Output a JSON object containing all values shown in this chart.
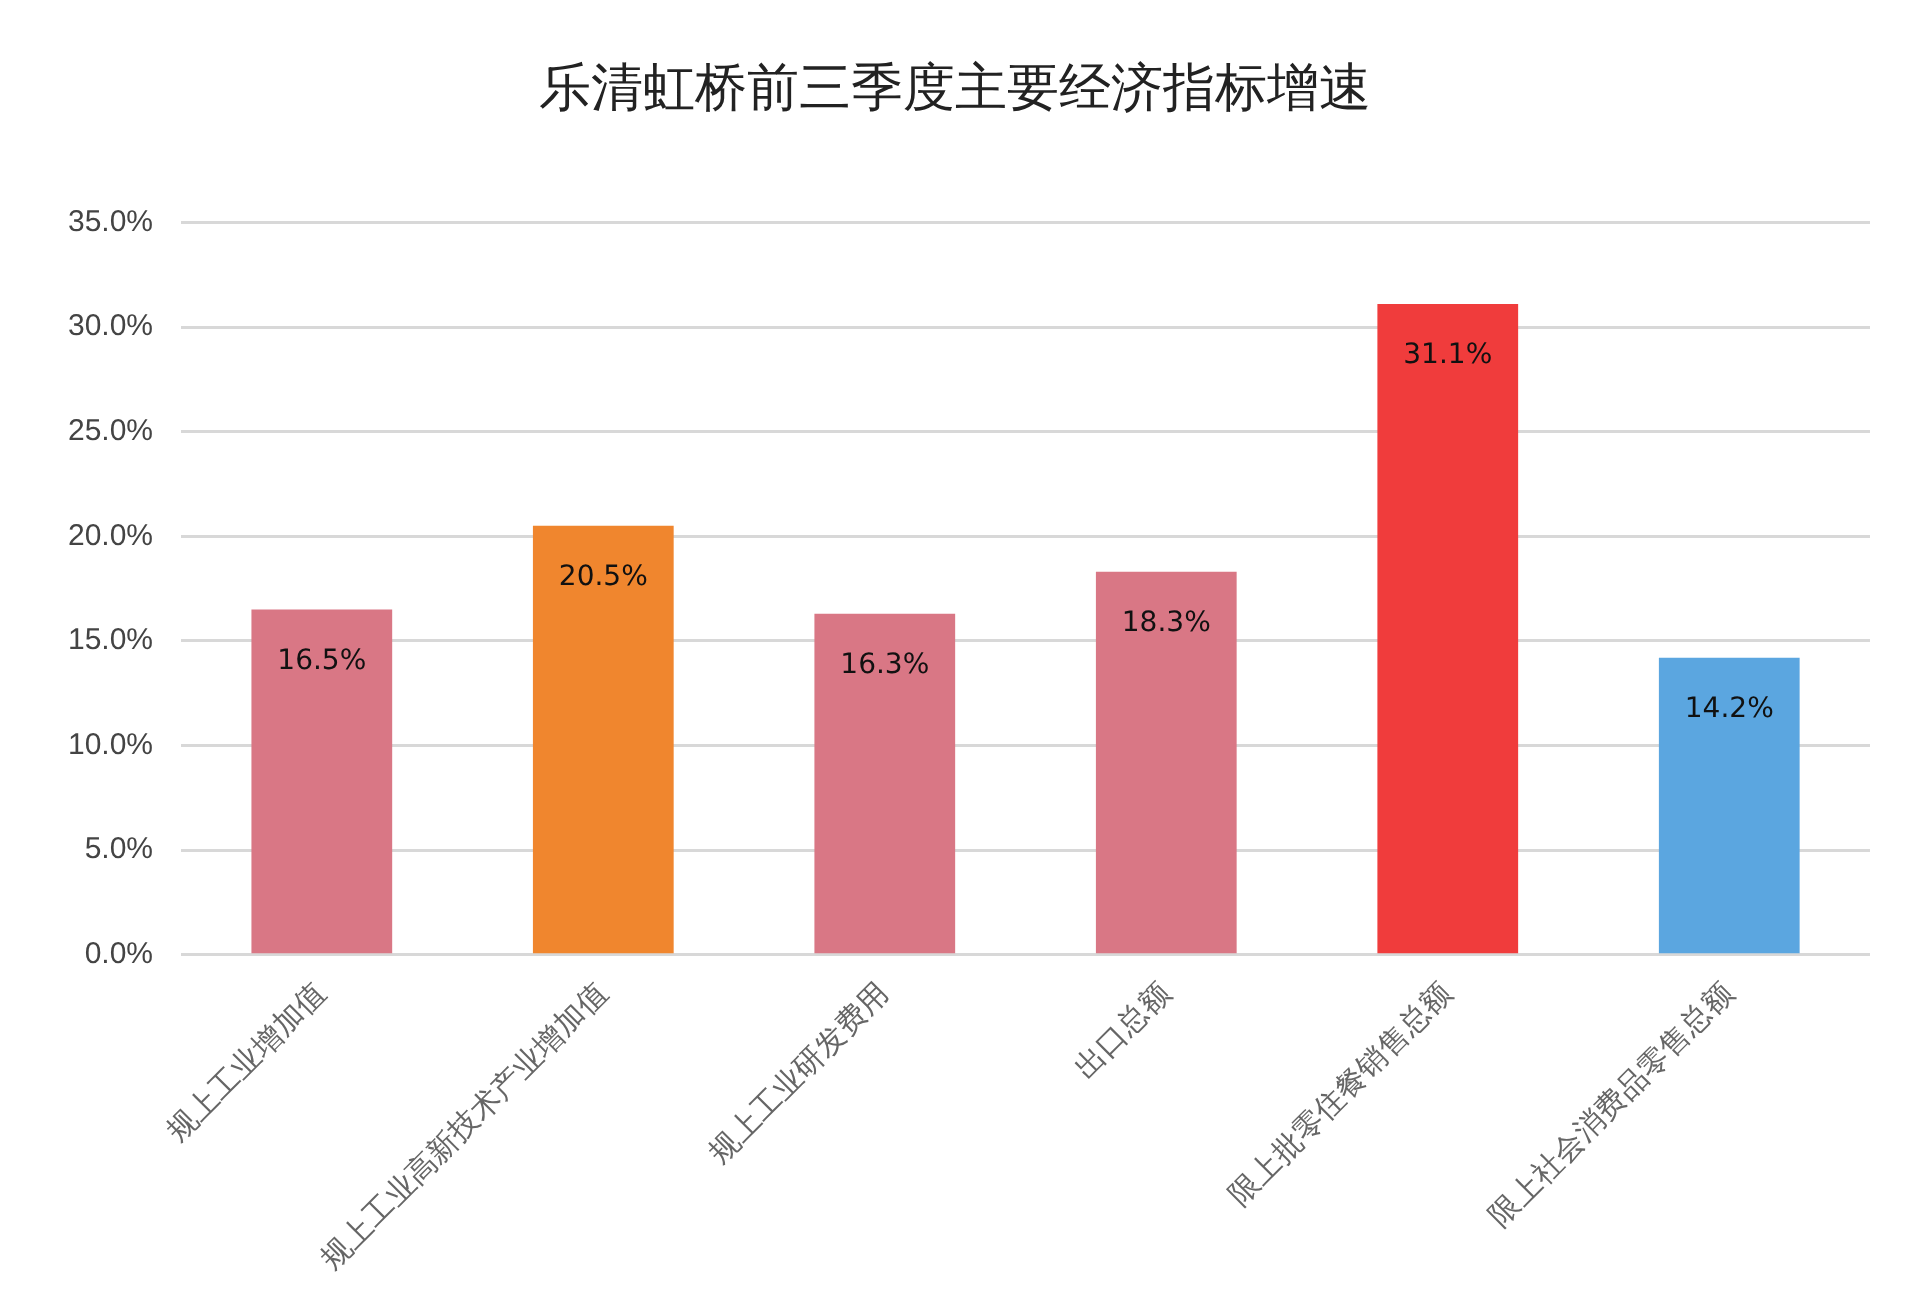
{
  "chart_data": {
    "type": "bar",
    "title": "乐清虹桥前三季度主要经济指标增速",
    "categories": [
      "规上工业增加值",
      "规上工业高新技术产业增加值",
      "规上工业研发费用",
      "出口总额",
      "限上批零住餐销售总额",
      "限上社会消费品零售总额"
    ],
    "values": [
      16.5,
      20.5,
      16.3,
      18.3,
      31.1,
      14.2
    ],
    "value_labels": [
      "16.5%",
      "20.5%",
      "16.3%",
      "18.3%",
      "31.1%",
      "14.2%"
    ],
    "colors": [
      "#d97785",
      "#f0862e",
      "#d97785",
      "#d97785",
      "#f03c3c",
      "#5ba6e0"
    ],
    "ylim": [
      0,
      35
    ],
    "yticks": [
      {
        "value": 0,
        "label": "0.0%"
      },
      {
        "value": 5,
        "label": "5.0%"
      },
      {
        "value": 10,
        "label": "10.0%"
      },
      {
        "value": 15,
        "label": "15.0%"
      },
      {
        "value": 20,
        "label": "20.0%"
      },
      {
        "value": 25,
        "label": "25.0%"
      },
      {
        "value": 30,
        "label": "30.0%"
      },
      {
        "value": 35,
        "label": "35.0%"
      }
    ],
    "grid": "y",
    "legend": false
  }
}
